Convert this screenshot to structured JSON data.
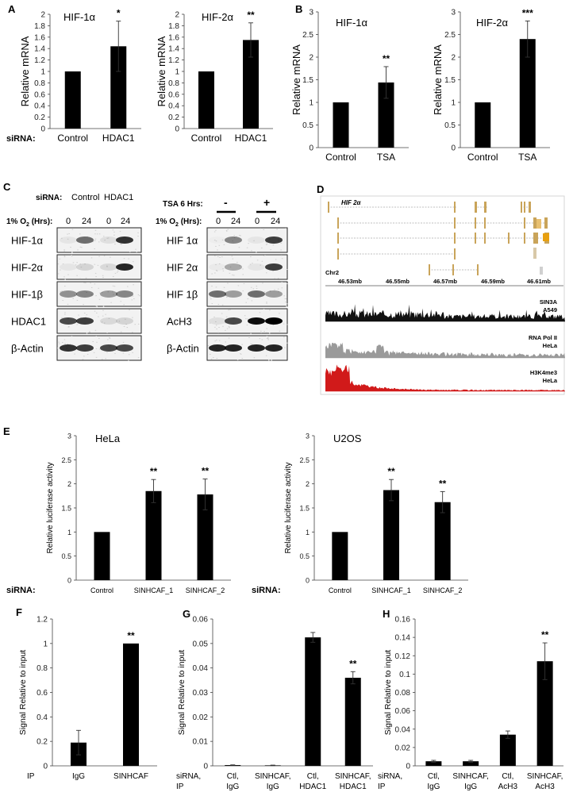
{
  "panel_labels": {
    "A": "A",
    "B": "B",
    "C": "C",
    "D": "D",
    "E": "E",
    "F": "F",
    "G": "G",
    "H": "H"
  },
  "chart_data": [
    {
      "id": "A1",
      "type": "bar",
      "panel": "A",
      "title": "HIF-1α",
      "ylabel": "Relative mRNA",
      "ylim": [
        0,
        2
      ],
      "yticks": [
        "0",
        "0.2",
        "0.4",
        "0.6",
        "0.8",
        "1",
        "1.2",
        "1.4",
        "1.6",
        "1.8",
        "2"
      ],
      "categories": [
        "Control",
        "HDAC1"
      ],
      "values": [
        1,
        1.44
      ],
      "errors": [
        0,
        0.44
      ],
      "sig": [
        "",
        "*"
      ],
      "xaxis_prefix": "siRNA:"
    },
    {
      "id": "A2",
      "type": "bar",
      "panel": "A",
      "title": "HIF-2α",
      "ylabel": "Relative mRNA",
      "ylim": [
        0,
        2
      ],
      "yticks": [
        "0",
        "0.2",
        "0.4",
        "0.6",
        "0.8",
        "1",
        "1.2",
        "1.4",
        "1.6",
        "1.8",
        "2"
      ],
      "categories": [
        "Control",
        "HDAC1"
      ],
      "values": [
        1,
        1.55
      ],
      "errors": [
        0,
        0.3
      ],
      "sig": [
        "",
        "**"
      ],
      "xaxis_prefix": ""
    },
    {
      "id": "B1",
      "type": "bar",
      "panel": "B",
      "title": "HIF-1α",
      "ylabel": "Relative mRNA",
      "ylim": [
        0,
        3
      ],
      "yticks": [
        "0",
        "0.5",
        "1",
        "1.5",
        "2",
        "2.5",
        "3"
      ],
      "categories": [
        "Control",
        "TSA"
      ],
      "values": [
        1,
        1.44
      ],
      "errors": [
        0,
        0.35
      ],
      "sig": [
        "",
        "**"
      ],
      "xaxis_prefix": ""
    },
    {
      "id": "B2",
      "type": "bar",
      "panel": "B",
      "title": "HIF-2α",
      "ylabel": "Relative mRNA",
      "ylim": [
        0,
        3
      ],
      "yticks": [
        "0",
        "0.5",
        "1",
        "1.5",
        "2",
        "2.5",
        "3"
      ],
      "categories": [
        "Control",
        "TSA"
      ],
      "values": [
        1,
        2.4
      ],
      "errors": [
        0,
        0.4
      ],
      "sig": [
        "",
        "***"
      ],
      "xaxis_prefix": ""
    },
    {
      "id": "E1",
      "type": "bar",
      "panel": "E",
      "title": "HeLa",
      "ylabel": "Relative luciferase activity",
      "ylim": [
        0,
        3
      ],
      "yticks": [
        "0",
        "0.5",
        "1",
        "1.5",
        "2",
        "2.5",
        "3"
      ],
      "categories": [
        "Control",
        "SINHCAF_1",
        "SINHCAF_2"
      ],
      "values": [
        1,
        1.85,
        1.78
      ],
      "errors": [
        0,
        0.24,
        0.32
      ],
      "sig": [
        "",
        "**",
        "**"
      ],
      "xaxis_prefix": "siRNA:"
    },
    {
      "id": "E2",
      "type": "bar",
      "panel": "E",
      "title": "U2OS",
      "ylabel": "Relative luciferase activity",
      "ylim": [
        0,
        3
      ],
      "yticks": [
        "0",
        "0.5",
        "1",
        "1.5",
        "2",
        "2.5",
        "3"
      ],
      "categories": [
        "Control",
        "SINHCAF_1",
        "SINHCAF_2"
      ],
      "values": [
        1,
        1.87,
        1.62
      ],
      "errors": [
        0,
        0.22,
        0.22
      ],
      "sig": [
        "",
        "**",
        "**"
      ],
      "xaxis_prefix": "siRNA:"
    },
    {
      "id": "F",
      "type": "bar",
      "panel": "F",
      "title": "",
      "ylabel": "Signal Relative to input",
      "ylim": [
        0,
        1.2
      ],
      "yticks": [
        "0",
        "0.2",
        "0.4",
        "0.6",
        "0.8",
        "1",
        "1.2"
      ],
      "categories": [
        "IgG",
        "SINHCAF"
      ],
      "values": [
        0.19,
        1.0
      ],
      "errors": [
        0.1,
        0
      ],
      "sig": [
        "",
        "**"
      ],
      "xaxis_prefix": "IP"
    },
    {
      "id": "G",
      "type": "bar",
      "panel": "G",
      "title": "",
      "ylabel": "Signal Relative to input",
      "ylim": [
        0,
        0.06
      ],
      "yticks": [
        "0",
        "0.01",
        "0.02",
        "0.03",
        "0.04",
        "0.05",
        "0.06"
      ],
      "categories": [
        "Ctl,\nIgG",
        "SINHCAF,\nIgG",
        "Ctl,\nHDAC1",
        "SINHCAF,\nHDAC1"
      ],
      "values": [
        0.0003,
        0.0002,
        0.0525,
        0.036
      ],
      "errors": [
        0.0001,
        0.0001,
        0.002,
        0.0025
      ],
      "sig": [
        "",
        "",
        "",
        "**"
      ],
      "xaxis_prefix": "siRNA,\nIP"
    },
    {
      "id": "H",
      "type": "bar",
      "panel": "H",
      "title": "",
      "ylabel": "Signal Relative to input",
      "ylim": [
        0,
        0.16
      ],
      "yticks": [
        "0",
        "0.02",
        "0.04",
        "0.06",
        "0.08",
        "0.1",
        "0.12",
        "0.14",
        "0.16"
      ],
      "categories": [
        "Ctl,\nIgG",
        "SINHCAF,\nIgG",
        "Ctl,\nAcH3",
        "SINHCAF,\nAcH3"
      ],
      "values": [
        0.005,
        0.005,
        0.034,
        0.114
      ],
      "errors": [
        0.001,
        0.001,
        0.004,
        0.02
      ],
      "sig": [
        "",
        "",
        "",
        "**"
      ],
      "xaxis_prefix": "siRNA,\nIP"
    }
  ],
  "panel_c": {
    "left": {
      "header_label": "siRNA:",
      "groups": [
        "Control",
        "HDAC1"
      ],
      "oxygen_label": "1% O",
      "oxygen_sub": "2",
      "oxygen_suffix": " (Hrs):",
      "hours": [
        "0",
        "24",
        "0",
        "24"
      ],
      "rows": [
        "HIF-1α",
        "HIF-2α",
        "HIF-1β",
        "HDAC1",
        "β-Actin"
      ]
    },
    "right": {
      "header_label": "TSA 6 Hrs:",
      "groups": [
        "-",
        "+"
      ],
      "oxygen_label": "1% O",
      "oxygen_sub": "2",
      "oxygen_suffix": " (Hrs):",
      "hours": [
        "0",
        "24",
        "0",
        "24"
      ],
      "rows": [
        "HIF 1α",
        "HIF 2α",
        "HIF 1β",
        "AcH3",
        "β-Actin"
      ]
    }
  },
  "panel_d": {
    "gene_label": "HIF 2α",
    "chrom": "Chr2",
    "ticks": [
      "46.53mb",
      "46.55mb",
      "46.57mb",
      "46.59mb",
      "46.61mb"
    ],
    "tracks": [
      {
        "label1": "SIN3A",
        "label2": "A549",
        "color": "#111111"
      },
      {
        "label1": "RNA Pol II",
        "label2": "HeLa",
        "color": "#9a9a9a"
      },
      {
        "label1": "H3K4me3",
        "label2": "HeLa",
        "color": "#d11a1a"
      }
    ],
    "exon_color": "#c9a45a"
  }
}
